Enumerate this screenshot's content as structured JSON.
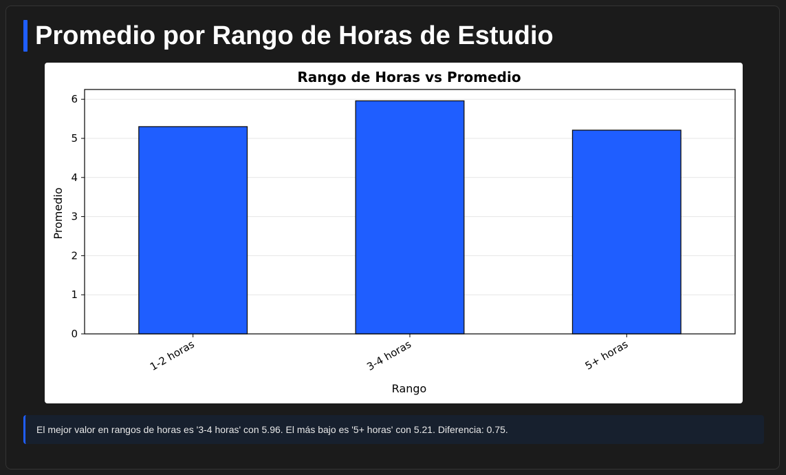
{
  "page": {
    "title": "Promedio por Rango de Horas de Estudio",
    "note": "El mejor valor en rangos de horas es '3-4 horas' con 5.96. El más bajo es '5+ horas' con 5.21. Diferencia: 0.75."
  },
  "colors": {
    "background": "#1e1e1e",
    "accent": "#1f5eff",
    "bar": "#1f5eff",
    "note_background": "#17202e"
  },
  "chart_data": {
    "type": "bar",
    "title": "Rango de Horas vs Promedio",
    "xlabel": "Rango",
    "ylabel": "Promedio",
    "categories": [
      "1-2 horas",
      "3-4 horas",
      "5+ horas"
    ],
    "values": [
      5.3,
      5.96,
      5.21
    ],
    "ylim": [
      0,
      6.25
    ],
    "yticks": [
      0,
      1,
      2,
      3,
      4,
      5,
      6
    ],
    "grid": "horizontal",
    "legend": "none"
  }
}
